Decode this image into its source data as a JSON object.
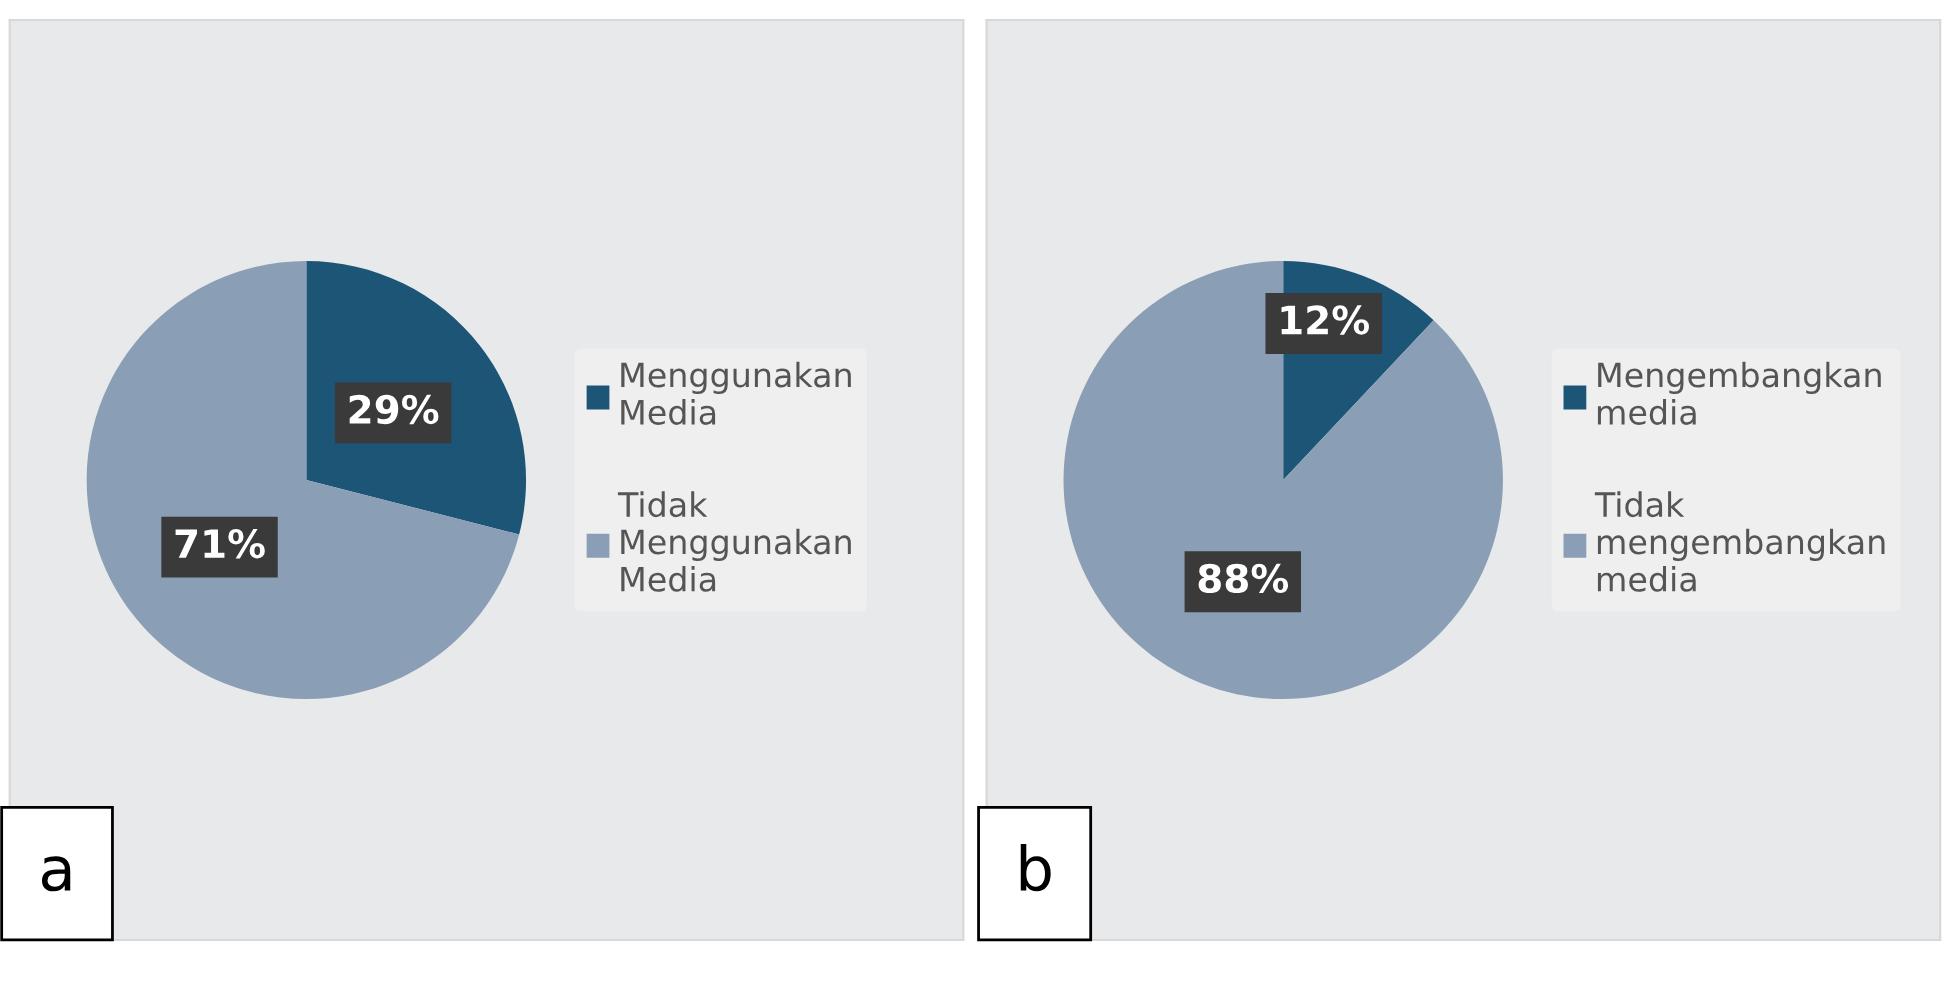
{
  "chart_data": [
    {
      "type": "pie",
      "categories": [
        "Menggunakan Media",
        "Tidak Menggunakan Media"
      ],
      "values": [
        29,
        71
      ],
      "colors": [
        "#1d5577",
        "#8a9fb6"
      ],
      "value_labels": [
        "29%",
        "71%"
      ],
      "legend": "right",
      "annotations": [
        "a"
      ]
    },
    {
      "type": "pie",
      "categories": [
        "Mengembangkan media",
        "Tidak mengembangkan media"
      ],
      "values": [
        12,
        88
      ],
      "colors": [
        "#1d5577",
        "#8a9fb6"
      ],
      "value_labels": [
        "12%",
        "88%"
      ],
      "legend": "right",
      "annotations": [
        "b"
      ]
    }
  ]
}
